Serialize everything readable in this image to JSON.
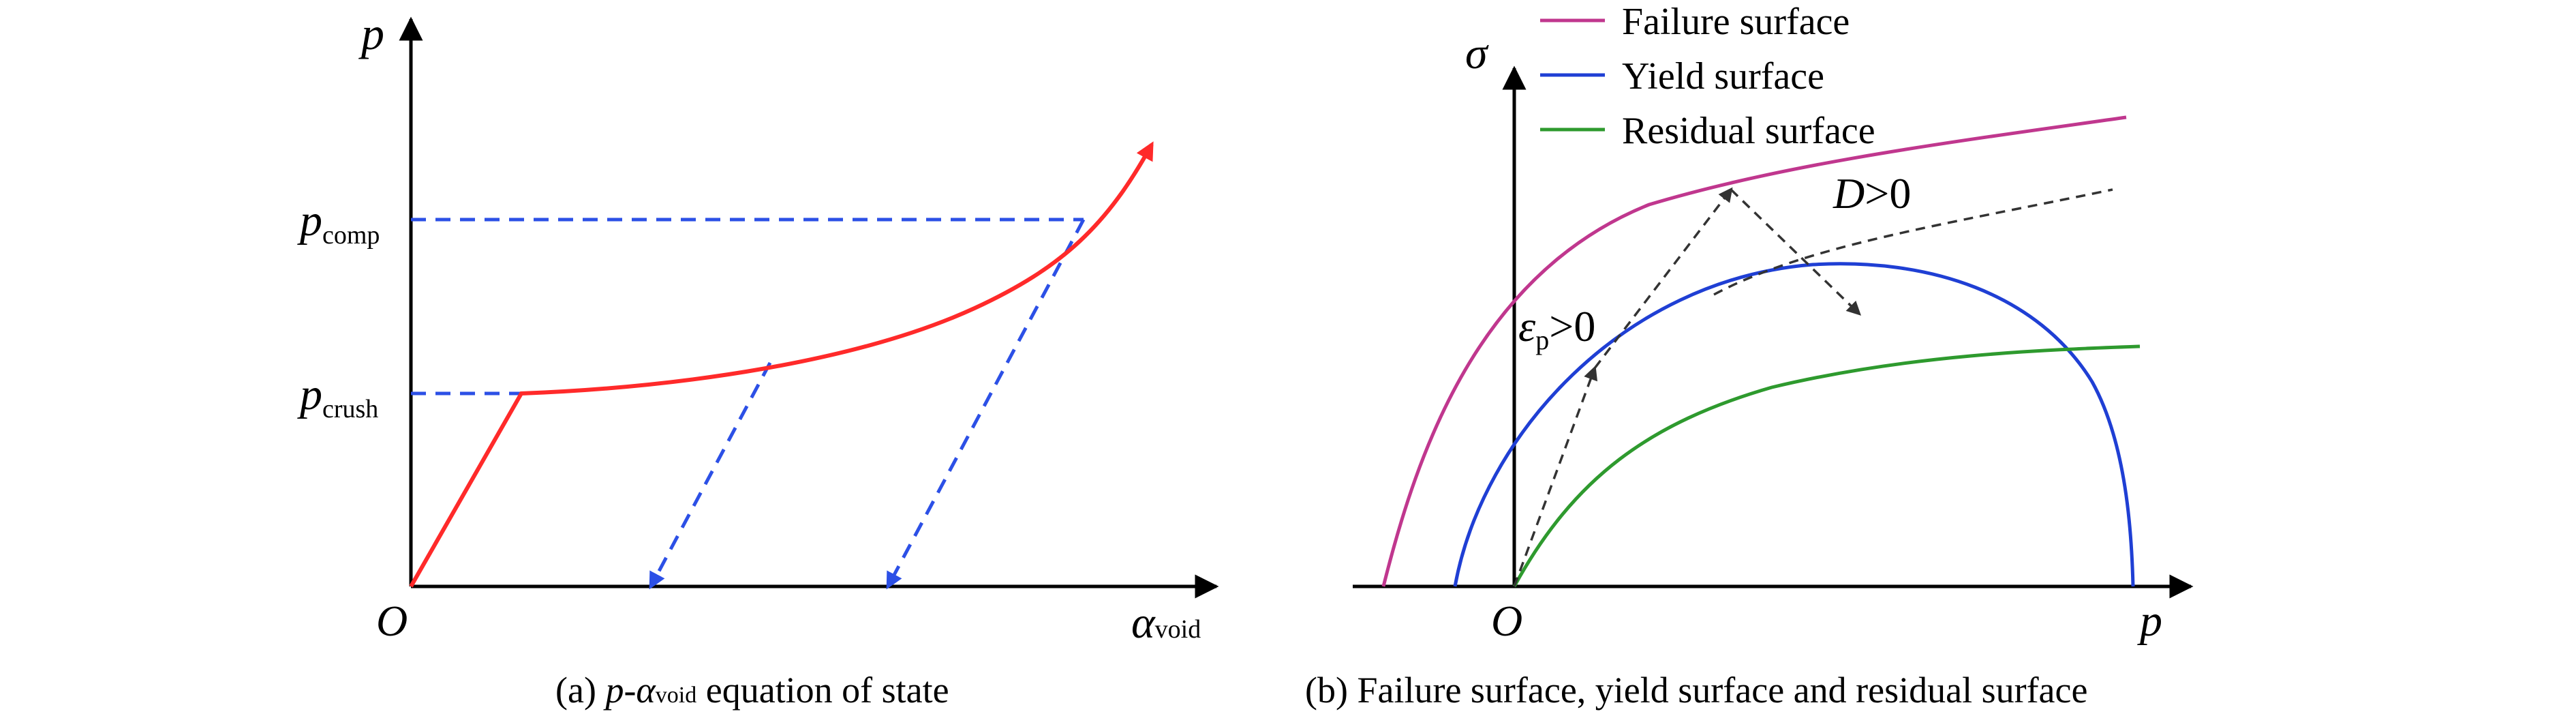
{
  "panel_a": {
    "y_axis_label": "p",
    "x_axis_label_main": "α",
    "x_axis_label_sub": "void",
    "origin_label": "O",
    "p_comp_main": "p",
    "p_comp_sub": "comp",
    "p_crush_main": "p",
    "p_crush_sub": "crush",
    "caption_prefix": "(a) ",
    "caption_p": "p",
    "caption_dash": "-",
    "caption_alpha": "α",
    "caption_sub": "void",
    "caption_rest": " equation of state",
    "curve_color": "#ff2a2a",
    "guide_color": "#2c50e6"
  },
  "panel_b": {
    "y_axis_label": "σ",
    "x_axis_label": "p",
    "origin_label": "O",
    "damage_label_main": "D",
    "damage_label_rest": ">0",
    "strain_label_main": "ε",
    "strain_label_sub": "p",
    "strain_label_rest": ">0",
    "caption": "(b) Failure surface, yield surface and residual surface",
    "legend": [
      {
        "label": "Failure surface",
        "color": "#c0378e"
      },
      {
        "label": "Yield surface",
        "color": "#1f3fd4"
      },
      {
        "label": "Residual surface",
        "color": "#2e9a2e"
      }
    ],
    "dashed_color": "#333333"
  }
}
